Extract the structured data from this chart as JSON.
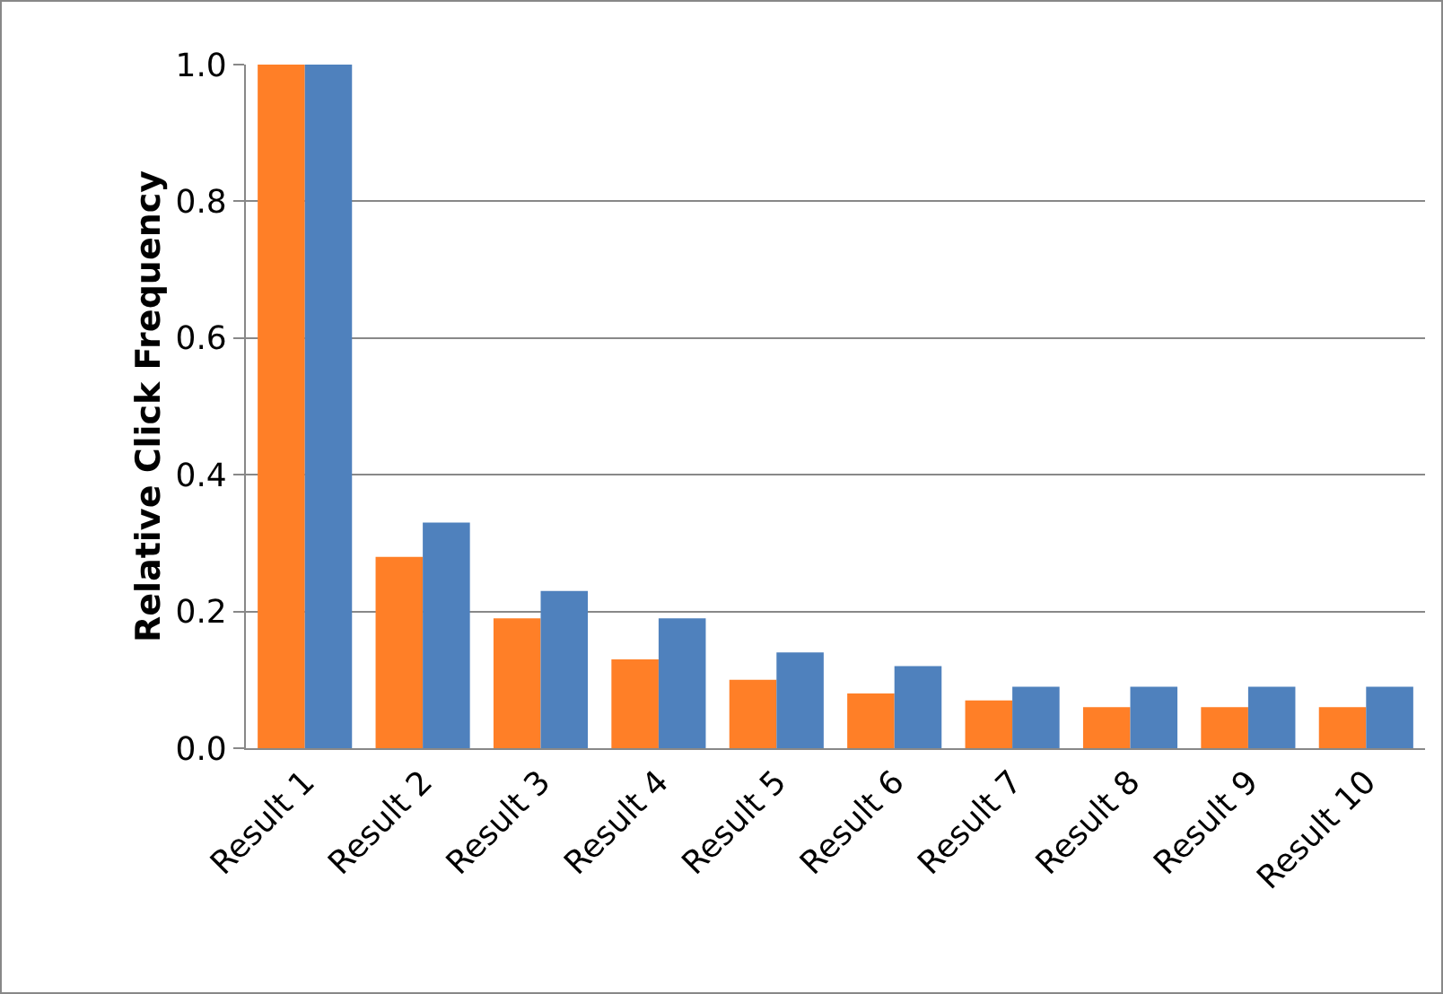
{
  "chart_data": {
    "type": "bar",
    "ylabel": "Relative Click Frequency",
    "categories": [
      "Result 1",
      "Result 2",
      "Result 3",
      "Result 4",
      "Result 5",
      "Result 6",
      "Result 7",
      "Result 8",
      "Result 9",
      "Result 10"
    ],
    "series": [
      {
        "color": "#ff7f27",
        "values": [
          1.0,
          0.28,
          0.19,
          0.13,
          0.1,
          0.08,
          0.07,
          0.06,
          0.06,
          0.06
        ]
      },
      {
        "color": "#4f81bd",
        "values": [
          1.0,
          0.33,
          0.23,
          0.19,
          0.14,
          0.12,
          0.09,
          0.09,
          0.09,
          0.09
        ]
      }
    ],
    "ylim": [
      0,
      1
    ],
    "yticks": [
      {
        "value": 0,
        "label": "0.0"
      },
      {
        "value": 0.2,
        "label": "0.2"
      },
      {
        "value": 0.4,
        "label": "0.4"
      },
      {
        "value": 0.6,
        "label": "0.6"
      },
      {
        "value": 0.8,
        "label": "0.8"
      },
      {
        "value": 1,
        "label": "1.0"
      }
    ],
    "grid": "y"
  }
}
